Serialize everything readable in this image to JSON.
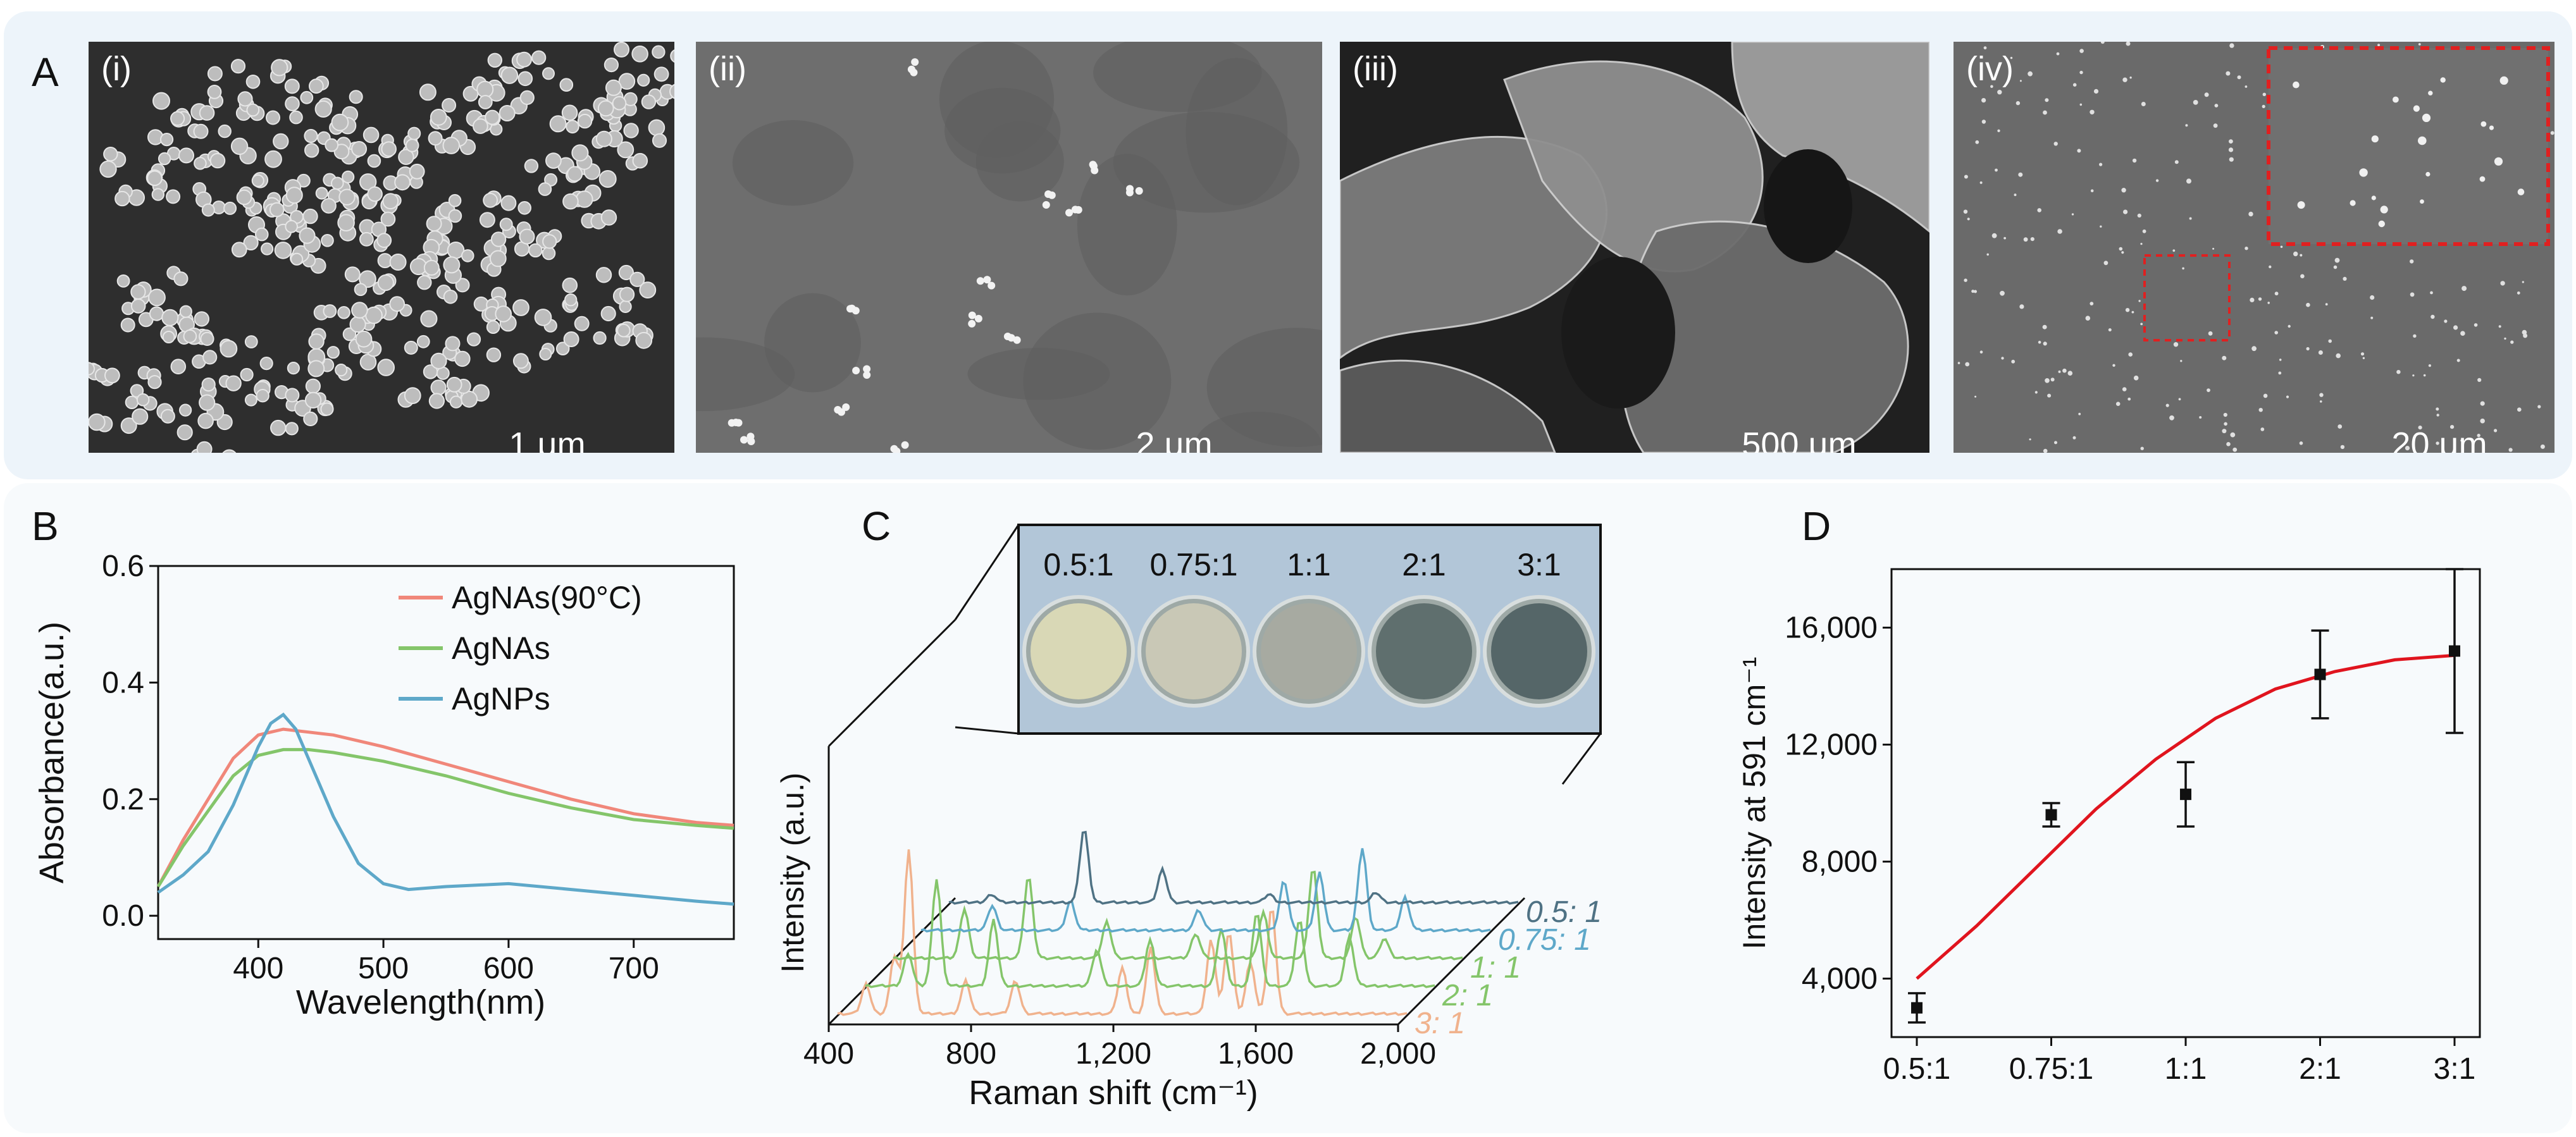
{
  "panel_a": {
    "letter": "A",
    "images": [
      {
        "label": "(i)",
        "scale_bar": "1 μm"
      },
      {
        "label": "(ii)",
        "scale_bar": "2 μm"
      },
      {
        "label": "(iii)",
        "scale_bar": "500 μm"
      },
      {
        "label": "(iv)",
        "scale_bar": "20 μm"
      }
    ]
  },
  "panel_b": {
    "letter": "B"
  },
  "panel_c": {
    "letter": "C"
  },
  "panel_d": {
    "letter": "D"
  },
  "chart_data": [
    {
      "panel": "B",
      "type": "line",
      "xlabel": "Wavelength(nm)",
      "ylabel": "Absorbance(a.u.)",
      "xlim": [
        320,
        780
      ],
      "ylim": [
        -0.04,
        0.6
      ],
      "xticks": [
        "400",
        "500",
        "600",
        "700"
      ],
      "yticks": [
        "0.0",
        "0.2",
        "0.4",
        "0.6"
      ],
      "legend_position": "top-right",
      "colors": {
        "AgNAs(90°C)": "#f0877a",
        "AgNAs": "#84c56a",
        "AgNPs": "#5ea8c9"
      },
      "series": [
        {
          "name": "AgNAs(90°C)",
          "x": [
            320,
            340,
            360,
            380,
            400,
            420,
            440,
            460,
            500,
            550,
            600,
            650,
            700,
            750,
            780
          ],
          "y": [
            0.05,
            0.13,
            0.2,
            0.27,
            0.31,
            0.32,
            0.315,
            0.31,
            0.29,
            0.26,
            0.23,
            0.2,
            0.175,
            0.16,
            0.155
          ]
        },
        {
          "name": "AgNAs",
          "x": [
            320,
            340,
            360,
            380,
            400,
            420,
            440,
            460,
            500,
            550,
            600,
            650,
            700,
            750,
            780
          ],
          "y": [
            0.05,
            0.12,
            0.18,
            0.24,
            0.275,
            0.285,
            0.285,
            0.28,
            0.265,
            0.24,
            0.21,
            0.185,
            0.165,
            0.155,
            0.15
          ]
        },
        {
          "name": "AgNPs",
          "x": [
            320,
            340,
            360,
            380,
            400,
            410,
            420,
            430,
            440,
            460,
            480,
            500,
            520,
            550,
            600,
            650,
            700,
            750,
            780
          ],
          "y": [
            0.04,
            0.07,
            0.11,
            0.19,
            0.29,
            0.33,
            0.345,
            0.32,
            0.27,
            0.17,
            0.09,
            0.055,
            0.045,
            0.05,
            0.055,
            0.045,
            0.035,
            0.025,
            0.02
          ]
        }
      ]
    },
    {
      "panel": "C",
      "type": "line",
      "xlabel": "Raman shift (cm⁻¹)",
      "ylabel": "Intensity (a.u.)",
      "xlim": [
        400,
        2000
      ],
      "xticks": [
        "400",
        "800",
        "1,200",
        "1,600",
        "2,000"
      ],
      "inset_labels": [
        "0.5:1",
        "0.75:1",
        "1:1",
        "2:1",
        "3:1"
      ],
      "inset_colors": [
        "#d9d8b6",
        "#c9c8b6",
        "#a7aaa1",
        "#5f6f6e",
        "#556668"
      ],
      "colors": {
        "0.5:1": "#4f7284",
        "0.75:1": "#5ea8c9",
        "1:1": "#84c56a",
        "2:1": "#84c56a",
        "3:1": "#f0b28d"
      },
      "series": [
        {
          "name": "0.5:1",
          "label": "0.5: 1",
          "peaks": [
            [
              520,
              0.05
            ],
            [
              780,
              0.45
            ],
            [
              1000,
              0.2
            ],
            [
              1300,
              0.05
            ],
            [
              1600,
              0.06
            ]
          ]
        },
        {
          "name": "0.75:1",
          "label": "0.75: 1",
          "peaks": [
            [
              600,
              0.15
            ],
            [
              820,
              0.18
            ],
            [
              1180,
              0.12
            ],
            [
              1420,
              0.3
            ],
            [
              1520,
              0.35
            ],
            [
              1640,
              0.5
            ],
            [
              1760,
              0.2
            ]
          ]
        },
        {
          "name": "1:1",
          "label": "1: 1",
          "peaks": [
            [
              600,
              0.3
            ],
            [
              780,
              0.5
            ],
            [
              1000,
              0.22
            ],
            [
              1250,
              0.15
            ],
            [
              1440,
              0.28
            ],
            [
              1580,
              0.55
            ],
            [
              1700,
              0.25
            ],
            [
              1780,
              0.12
            ]
          ]
        },
        {
          "name": "2:1",
          "label": "2: 1",
          "peaks": [
            [
              520,
              0.2
            ],
            [
              600,
              0.65
            ],
            [
              760,
              0.4
            ],
            [
              1050,
              0.22
            ],
            [
              1200,
              0.28
            ],
            [
              1400,
              0.35
            ],
            [
              1500,
              0.45
            ],
            [
              1620,
              0.4
            ],
            [
              1760,
              0.3
            ]
          ]
        },
        {
          "name": "3:1",
          "label": "3: 1",
          "peaks": [
            [
              480,
              0.18
            ],
            [
              560,
              0.35
            ],
            [
              600,
              1.0
            ],
            [
              760,
              0.2
            ],
            [
              900,
              0.2
            ],
            [
              1200,
              0.28
            ],
            [
              1280,
              0.4
            ],
            [
              1450,
              0.45
            ],
            [
              1500,
              0.5
            ],
            [
              1560,
              0.32
            ],
            [
              1620,
              0.65
            ]
          ]
        }
      ]
    },
    {
      "panel": "D",
      "type": "scatter",
      "ylabel": "Intensity at 591 cm⁻¹",
      "categories": [
        "0.5:1",
        "0.75:1",
        "1:1",
        "2:1",
        "3:1"
      ],
      "ylim": [
        2000,
        18000
      ],
      "yticks": [
        "4,000",
        "8,000",
        "12,000",
        "16,000"
      ],
      "points": [
        {
          "x": "0.5:1",
          "y": 3000,
          "err": 500
        },
        {
          "x": "0.75:1",
          "y": 9600,
          "err": 400
        },
        {
          "x": "1:1",
          "y": 10300,
          "err": 1100
        },
        {
          "x": "2:1",
          "y": 14400,
          "err": 1500
        },
        {
          "x": "3:1",
          "y": 15200,
          "err": 2800
        }
      ],
      "fit_color": "#e0141e",
      "fit": [
        4000,
        5800,
        7800,
        9800,
        11500,
        12900,
        13900,
        14500,
        14900,
        15050
      ]
    }
  ]
}
